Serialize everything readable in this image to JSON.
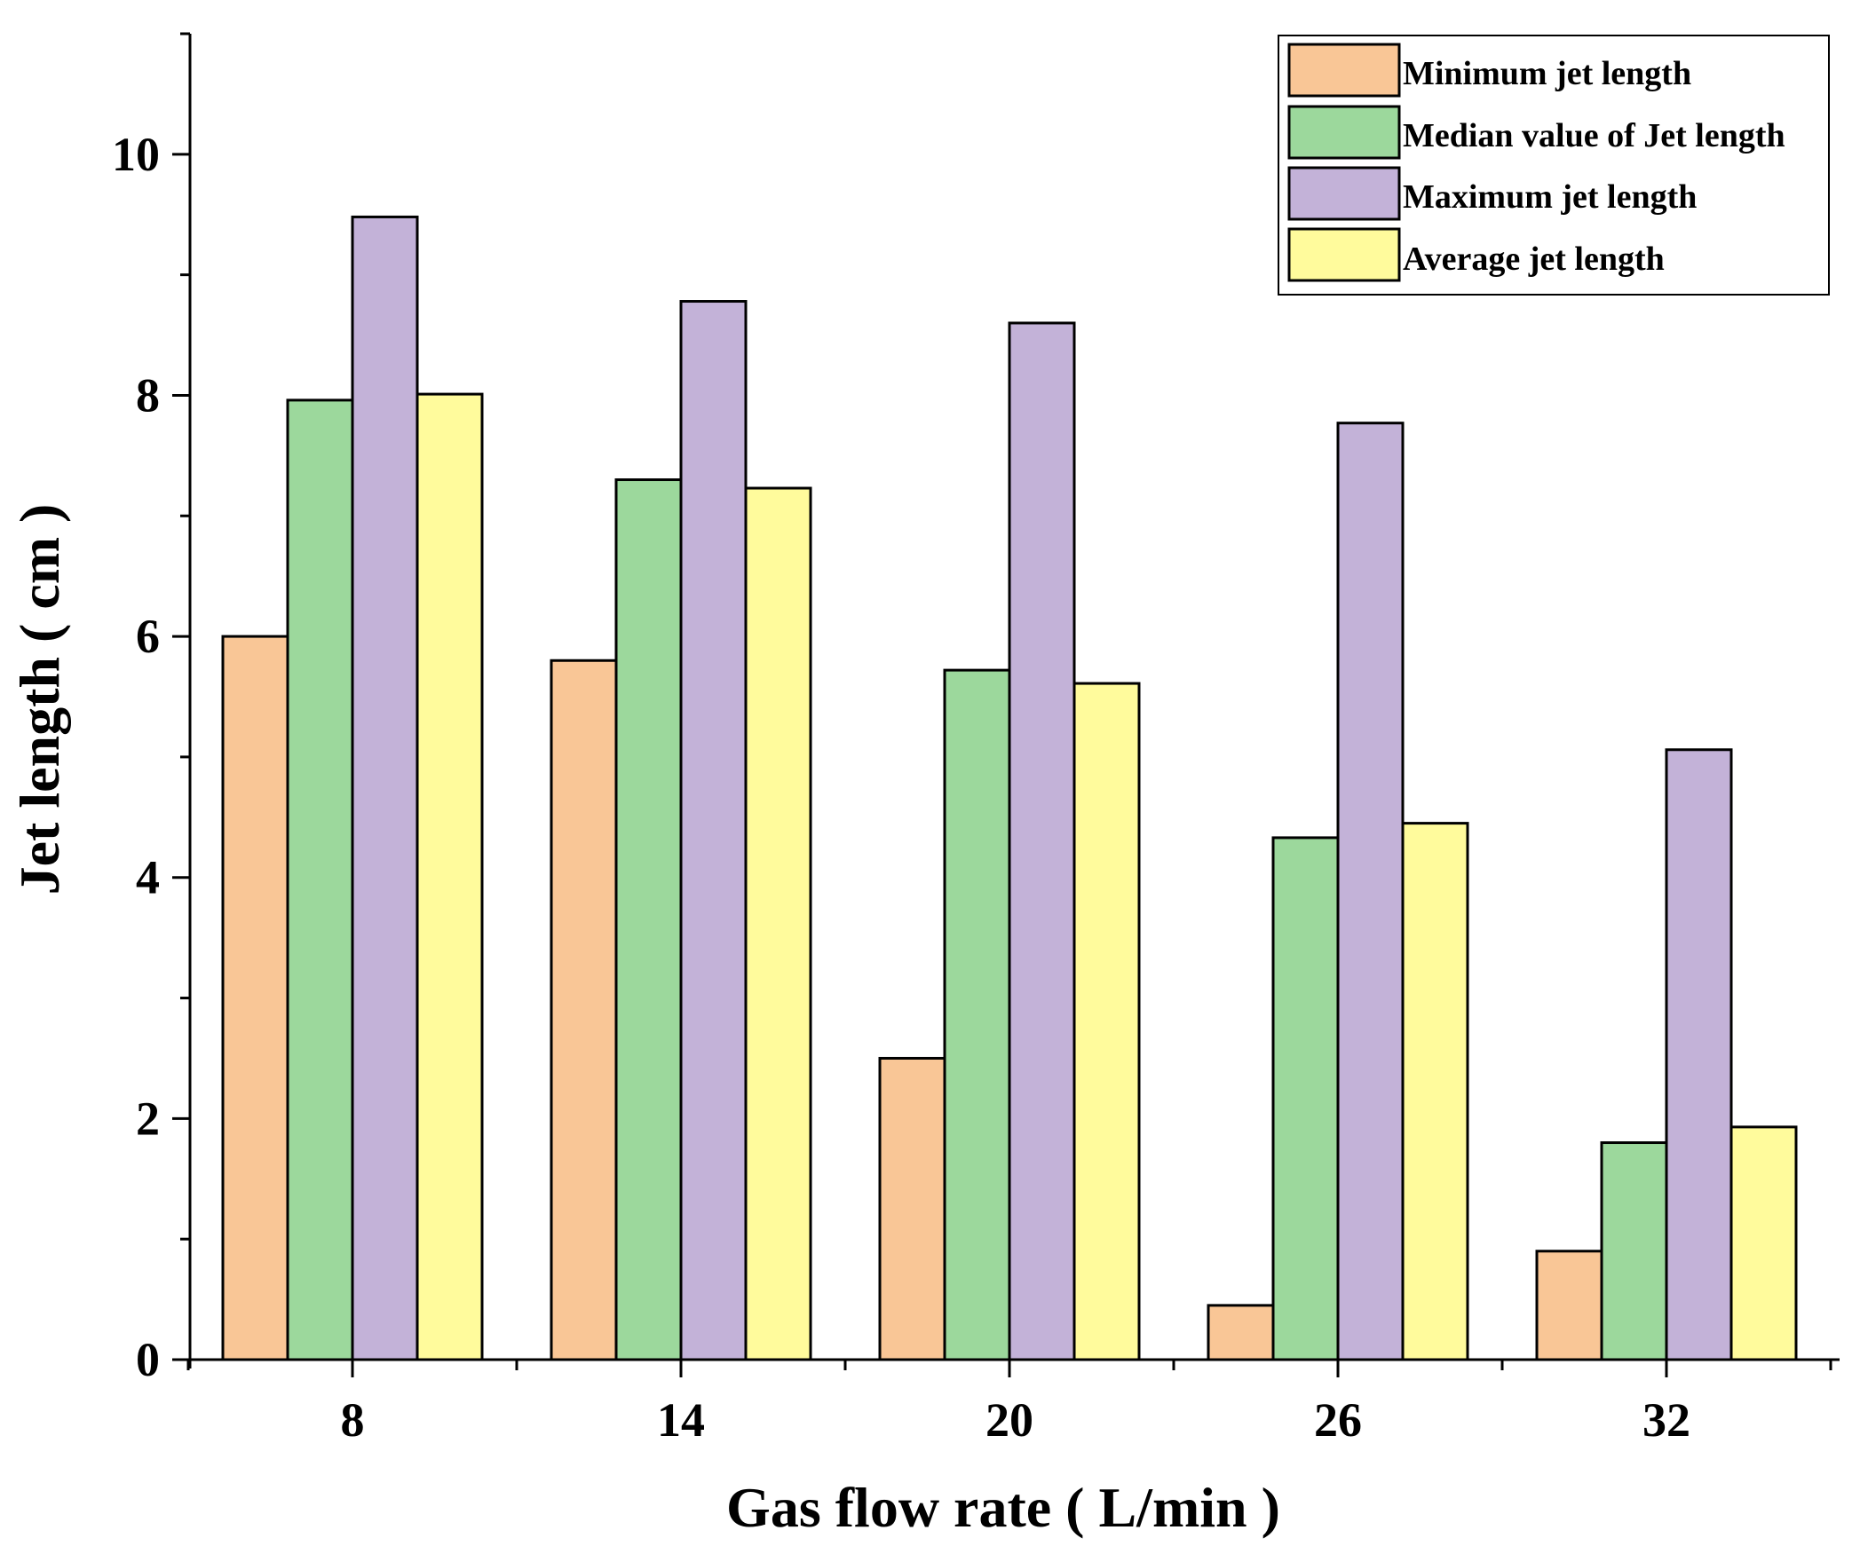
{
  "chart_data": {
    "type": "bar",
    "title": "",
    "xlabel": "Gas flow rate ( L/min )",
    "ylabel": "Jet length ( cm )",
    "categories": [
      "8",
      "14",
      "20",
      "26",
      "32"
    ],
    "ylim": [
      0,
      11
    ],
    "yticks": [
      0,
      2,
      4,
      6,
      8,
      10
    ],
    "grid": false,
    "legend_position": "top-right",
    "series": [
      {
        "name": "Minimum jet length",
        "color": "#F9C696",
        "values": [
          6.0,
          5.8,
          2.5,
          0.45,
          0.9
        ]
      },
      {
        "name": "Median value of Jet length",
        "color": "#9CD89C",
        "values": [
          7.96,
          7.3,
          5.72,
          4.33,
          1.8
        ]
      },
      {
        "name": "Maximum jet length",
        "color": "#C3B2D8",
        "values": [
          9.48,
          8.78,
          8.6,
          7.77,
          5.06
        ]
      },
      {
        "name": "Average jet length",
        "color": "#FFFB9C",
        "values": [
          8.01,
          7.23,
          5.61,
          4.45,
          1.93
        ]
      }
    ]
  }
}
